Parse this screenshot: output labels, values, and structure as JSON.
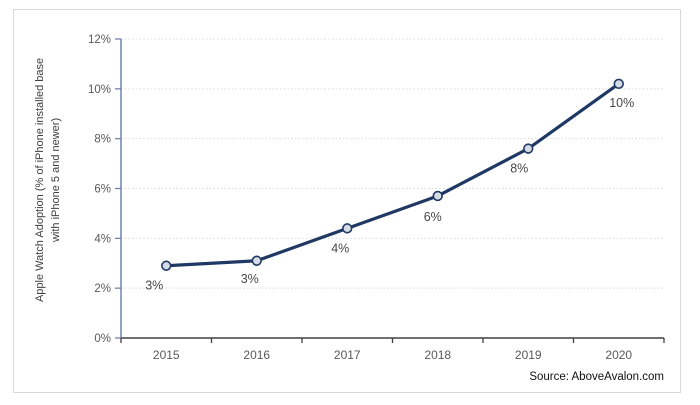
{
  "window": {
    "background": "#ffffff",
    "frame_border": "#d9d9d9"
  },
  "chart_data": {
    "type": "line",
    "title": "",
    "categories": [
      "2015",
      "2016",
      "2017",
      "2018",
      "2019",
      "2020"
    ],
    "series": [
      {
        "name": "Apple Watch Adoption",
        "values": [
          2.9,
          3.1,
          4.4,
          5.7,
          7.6,
          10.2
        ]
      }
    ],
    "point_labels": [
      "3%",
      "3%",
      "4%",
      "6%",
      "8%",
      "10%"
    ],
    "ylabel_line1": "Apple Watch Adoption (% of iPhone installed base",
    "ylabel_line2": "with iPhone 5 and newer)",
    "xlabel": "",
    "ylim": [
      0,
      12
    ],
    "ytick_step": 2,
    "ytick_labels": [
      "0%",
      "2%",
      "4%",
      "6%",
      "8%",
      "10%",
      "12%"
    ],
    "grid": "horizontal-dotted",
    "legend": "none",
    "colors": {
      "line": "#1f3864",
      "marker_fill": "#d6dce5",
      "marker_stroke": "#1f3864",
      "gridline": "#d9d9d9",
      "y_axis": "#6f83ad",
      "x_axis": "#404040",
      "tick_label": "#595959",
      "data_label": "#474747"
    }
  },
  "footer": {
    "source": "Source: AboveAvalon.com"
  }
}
